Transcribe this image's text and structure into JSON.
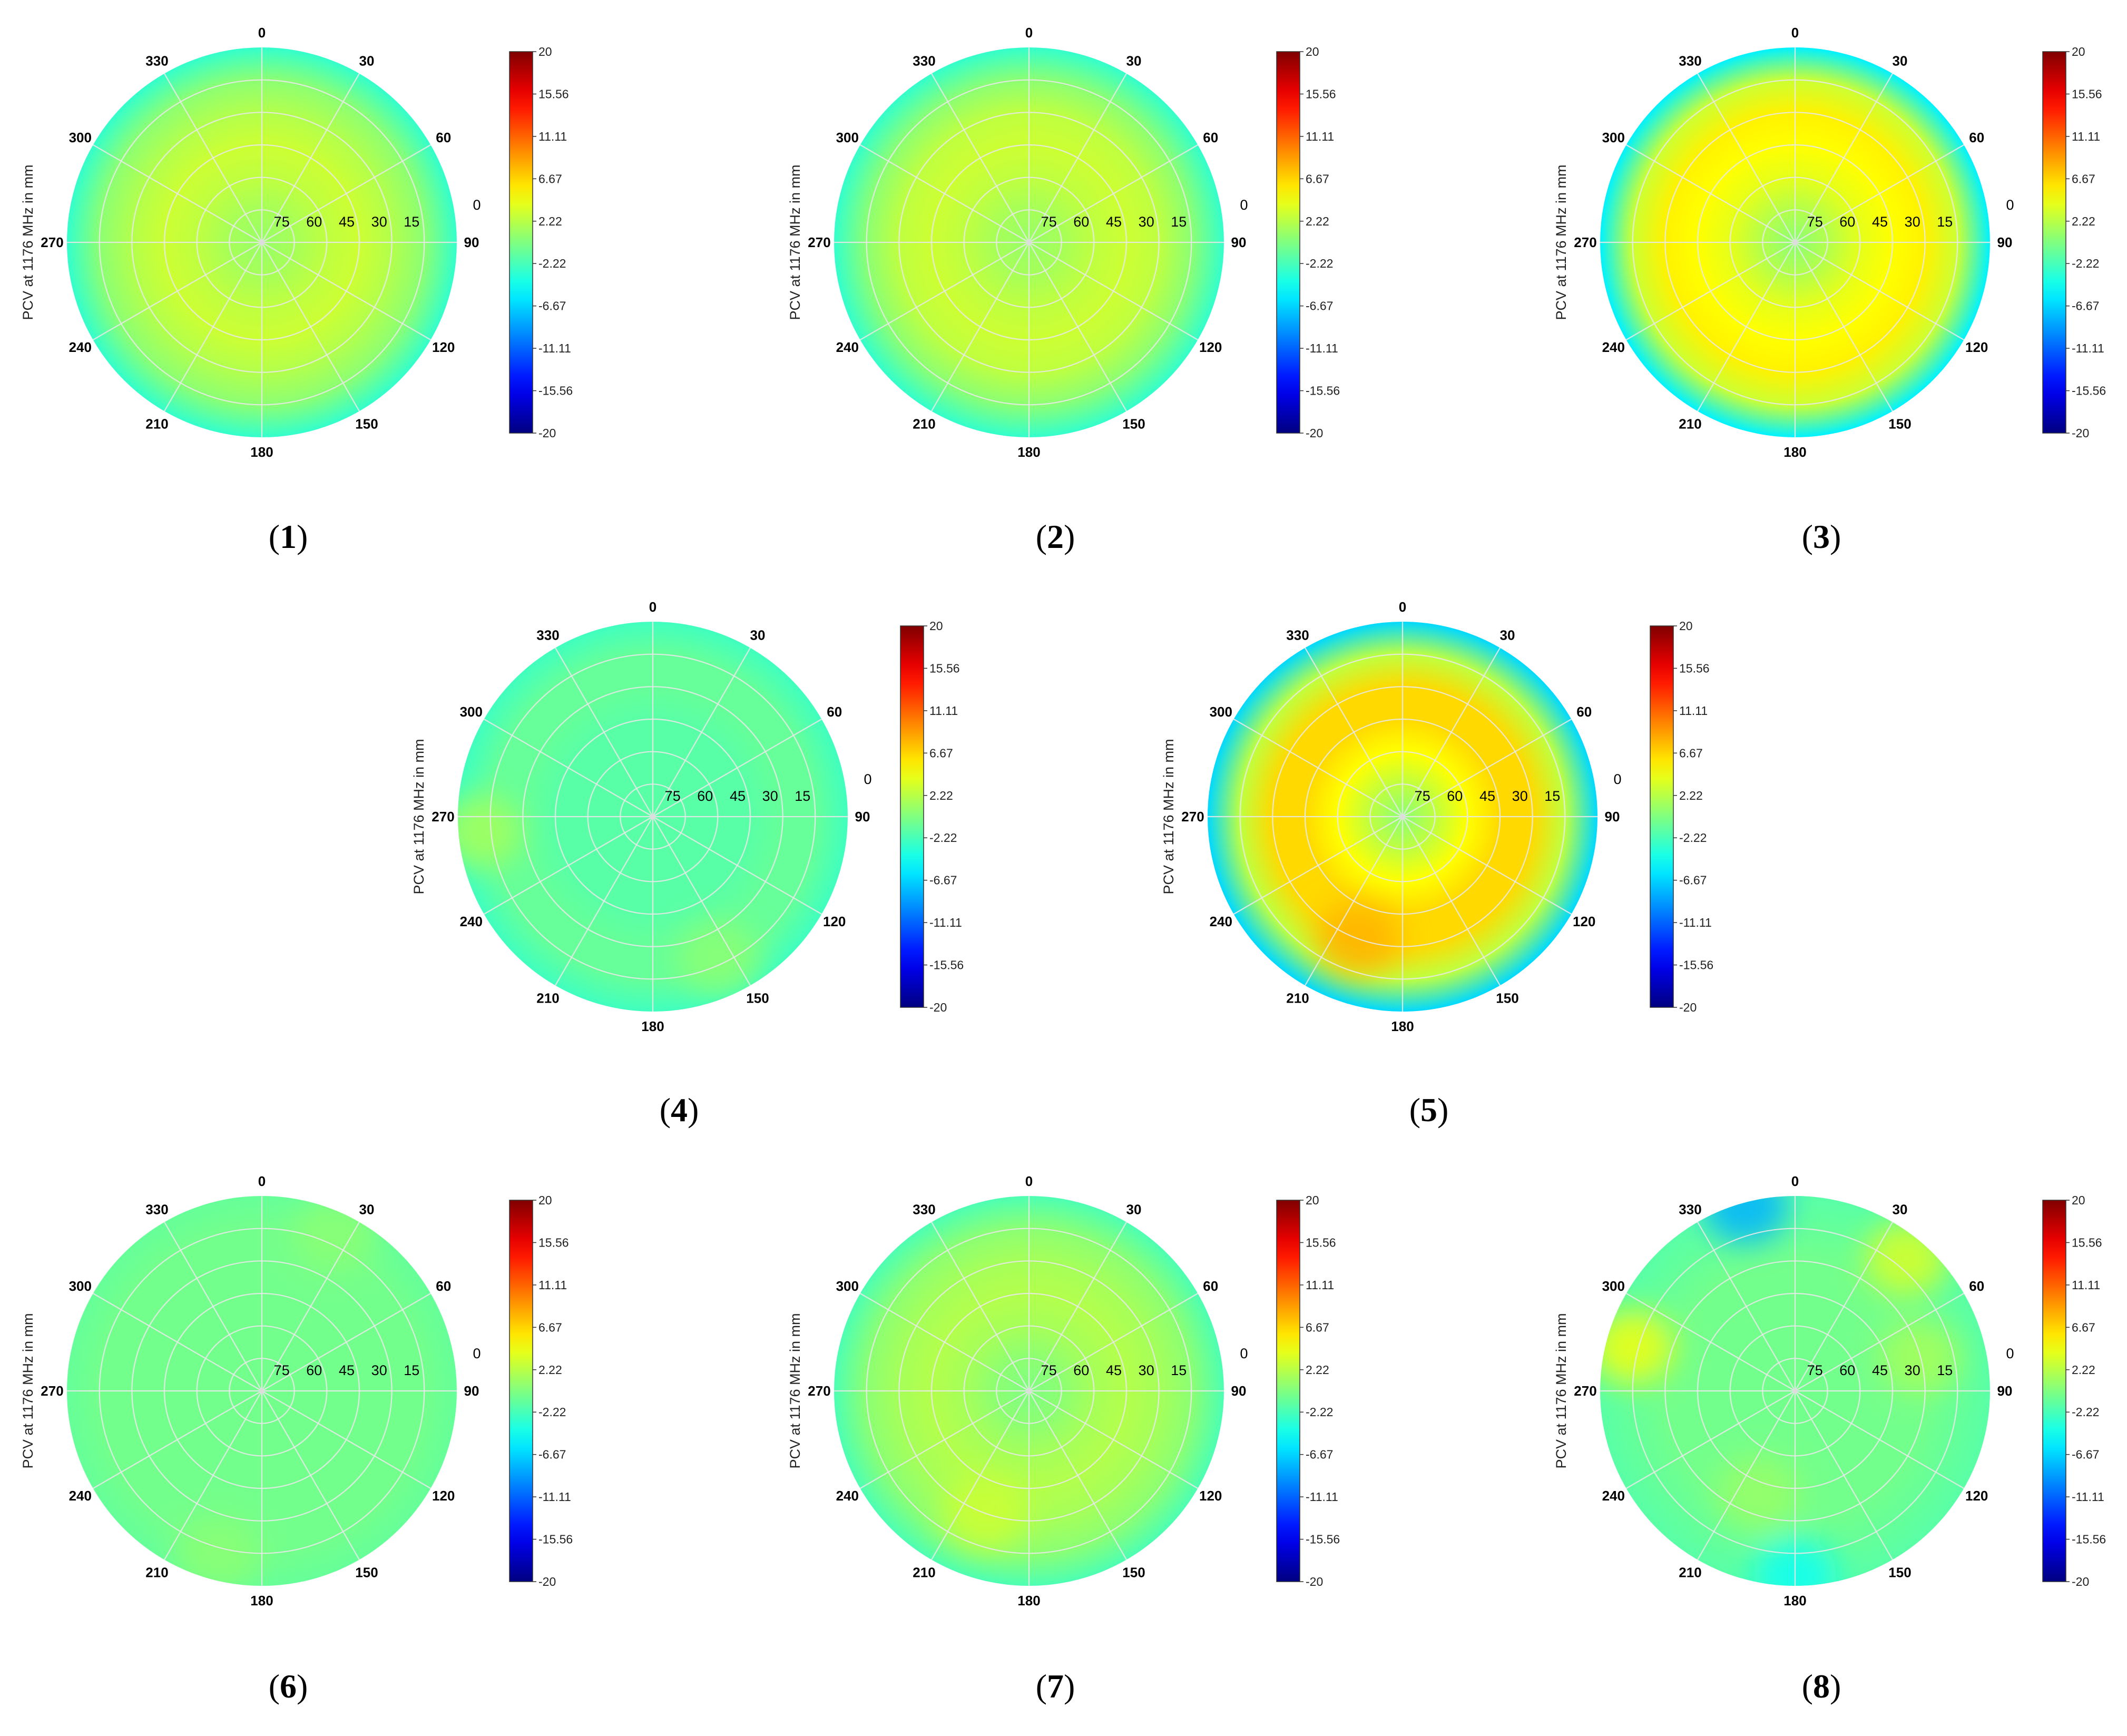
{
  "chart_data": [
    {
      "type": "polar-heatmap",
      "panel_label": "1",
      "ylabel": "PCV at 1176 MHz in mm",
      "angular_ticks": [
        "0",
        "30",
        "60",
        "90",
        "120",
        "150",
        "180",
        "210",
        "240",
        "270",
        "300",
        "330"
      ],
      "radial_ticks": [
        "0",
        "15",
        "30",
        "45",
        "60",
        "75"
      ],
      "colorbar": {
        "ticks": [
          "20",
          "15.56",
          "11.11",
          "6.67",
          "2.22",
          "-2.22",
          "-6.67",
          "-11.11",
          "-15.56",
          "-20"
        ],
        "range": [
          -20,
          20
        ],
        "colormap": "jet"
      },
      "pcv_vs_elevation": {
        "elevation_deg": [
          0,
          15,
          30,
          45,
          60,
          75,
          90
        ],
        "pcv_mm": [
          -3.0,
          0.5,
          2.0,
          3.0,
          2.5,
          1.5,
          1.0
        ]
      },
      "anomalies": []
    },
    {
      "type": "polar-heatmap",
      "panel_label": "2",
      "ylabel": "PCV at 1176 MHz in mm",
      "angular_ticks": [
        "0",
        "30",
        "60",
        "90",
        "120",
        "150",
        "180",
        "210",
        "240",
        "270",
        "300",
        "330"
      ],
      "radial_ticks": [
        "0",
        "15",
        "30",
        "45",
        "60",
        "75"
      ],
      "colorbar": {
        "ticks": [
          "20",
          "15.56",
          "11.11",
          "6.67",
          "2.22",
          "-2.22",
          "-6.67",
          "-11.11",
          "-15.56",
          "-20"
        ],
        "range": [
          -20,
          20
        ],
        "colormap": "jet"
      },
      "pcv_vs_elevation": {
        "elevation_deg": [
          0,
          15,
          30,
          45,
          60,
          75,
          90
        ],
        "pcv_mm": [
          -3.0,
          0.5,
          2.5,
          3.0,
          2.5,
          1.5,
          1.0
        ]
      },
      "anomalies": []
    },
    {
      "type": "polar-heatmap",
      "panel_label": "3",
      "ylabel": "PCV at 1176 MHz in mm",
      "angular_ticks": [
        "0",
        "30",
        "60",
        "90",
        "120",
        "150",
        "180",
        "210",
        "240",
        "270",
        "300",
        "330"
      ],
      "radial_ticks": [
        "0",
        "15",
        "30",
        "45",
        "60",
        "75"
      ],
      "colorbar": {
        "ticks": [
          "20",
          "15.56",
          "11.11",
          "6.67",
          "2.22",
          "-2.22",
          "-6.67",
          "-11.11",
          "-15.56",
          "-20"
        ],
        "range": [
          -20,
          20
        ],
        "colormap": "jet"
      },
      "pcv_vs_elevation": {
        "elevation_deg": [
          0,
          15,
          30,
          45,
          60,
          75,
          90
        ],
        "pcv_mm": [
          -5.5,
          3.0,
          5.5,
          5.0,
          4.0,
          2.0,
          0.5
        ]
      },
      "anomalies": []
    },
    {
      "type": "polar-heatmap",
      "panel_label": "4",
      "ylabel": "PCV at 1176 MHz in mm",
      "angular_ticks": [
        "0",
        "30",
        "60",
        "90",
        "120",
        "150",
        "180",
        "210",
        "240",
        "270",
        "300",
        "330"
      ],
      "radial_ticks": [
        "0",
        "15",
        "30",
        "45",
        "60",
        "75"
      ],
      "colorbar": {
        "ticks": [
          "20",
          "15.56",
          "11.11",
          "6.67",
          "2.22",
          "-2.22",
          "-6.67",
          "-11.11",
          "-15.56",
          "-20"
        ],
        "range": [
          -20,
          20
        ],
        "colormap": "jet"
      },
      "pcv_vs_elevation": {
        "elevation_deg": [
          0,
          15,
          30,
          45,
          60,
          75,
          90
        ],
        "pcv_mm": [
          -2.5,
          -1.0,
          -1.0,
          -1.5,
          -1.5,
          -1.5,
          -1.5
        ]
      },
      "anomalies": [
        {
          "azimuth_deg": 265,
          "elevation_deg": 10,
          "pcv_mm": 1.5
        },
        {
          "azimuth_deg": 155,
          "elevation_deg": 18,
          "pcv_mm": 0.5
        }
      ]
    },
    {
      "type": "polar-heatmap",
      "panel_label": "5",
      "ylabel": "PCV at 1176 MHz in mm",
      "angular_ticks": [
        "0",
        "30",
        "60",
        "90",
        "120",
        "150",
        "180",
        "210",
        "240",
        "270",
        "300",
        "330"
      ],
      "radial_ticks": [
        "0",
        "15",
        "30",
        "45",
        "60",
        "75"
      ],
      "colorbar": {
        "ticks": [
          "20",
          "15.56",
          "11.11",
          "6.67",
          "2.22",
          "-2.22",
          "-6.67",
          "-11.11",
          "-15.56",
          "-20"
        ],
        "range": [
          -20,
          20
        ],
        "colormap": "jet"
      },
      "pcv_vs_elevation": {
        "elevation_deg": [
          0,
          15,
          30,
          45,
          60,
          75,
          90
        ],
        "pcv_mm": [
          -6.5,
          2.5,
          6.5,
          6.5,
          5.0,
          2.5,
          0.5
        ]
      },
      "anomalies": [
        {
          "azimuth_deg": 200,
          "elevation_deg": 30,
          "pcv_mm": 8.0
        }
      ]
    },
    {
      "type": "polar-heatmap",
      "panel_label": "6",
      "ylabel": "PCV at 1176 MHz in mm",
      "angular_ticks": [
        "0",
        "30",
        "60",
        "90",
        "120",
        "150",
        "180",
        "210",
        "240",
        "270",
        "300",
        "330"
      ],
      "radial_ticks": [
        "0",
        "15",
        "30",
        "45",
        "60",
        "75"
      ],
      "colorbar": {
        "ticks": [
          "20",
          "15.56",
          "11.11",
          "6.67",
          "2.22",
          "-2.22",
          "-6.67",
          "-11.11",
          "-15.56",
          "-20"
        ],
        "range": [
          -20,
          20
        ],
        "colormap": "jet"
      },
      "pcv_vs_elevation": {
        "elevation_deg": [
          0,
          15,
          30,
          45,
          60,
          75,
          90
        ],
        "pcv_mm": [
          -1.0,
          -0.5,
          -0.5,
          -0.5,
          -0.5,
          -0.5,
          -0.5
        ]
      },
      "anomalies": [
        {
          "azimuth_deg": 25,
          "elevation_deg": 10,
          "pcv_mm": 0.5
        },
        {
          "azimuth_deg": 195,
          "elevation_deg": 12,
          "pcv_mm": 0.5
        }
      ]
    },
    {
      "type": "polar-heatmap",
      "panel_label": "7",
      "ylabel": "PCV at 1176 MHz in mm",
      "angular_ticks": [
        "0",
        "30",
        "60",
        "90",
        "120",
        "150",
        "180",
        "210",
        "240",
        "270",
        "300",
        "330"
      ],
      "radial_ticks": [
        "0",
        "15",
        "30",
        "45",
        "60",
        "75"
      ],
      "colorbar": {
        "ticks": [
          "20",
          "15.56",
          "11.11",
          "6.67",
          "2.22",
          "-2.22",
          "-6.67",
          "-11.11",
          "-15.56",
          "-20"
        ],
        "range": [
          -20,
          20
        ],
        "colormap": "jet"
      },
      "pcv_vs_elevation": {
        "elevation_deg": [
          0,
          15,
          30,
          45,
          60,
          75,
          90
        ],
        "pcv_mm": [
          -2.0,
          0.5,
          1.5,
          2.0,
          1.5,
          0.5,
          0.0
        ]
      },
      "anomalies": [
        {
          "azimuth_deg": 200,
          "elevation_deg": 30,
          "pcv_mm": 3.0
        }
      ]
    },
    {
      "type": "polar-heatmap",
      "panel_label": "8",
      "ylabel": "PCV at 1176 MHz in mm",
      "angular_ticks": [
        "0",
        "30",
        "60",
        "90",
        "120",
        "150",
        "180",
        "210",
        "240",
        "270",
        "300",
        "330"
      ],
      "radial_ticks": [
        "0",
        "15",
        "30",
        "45",
        "60",
        "75"
      ],
      "colorbar": {
        "ticks": [
          "20",
          "15.56",
          "11.11",
          "6.67",
          "2.22",
          "-2.22",
          "-6.67",
          "-11.11",
          "-15.56",
          "-20"
        ],
        "range": [
          -20,
          20
        ],
        "colormap": "jet"
      },
      "pcv_vs_elevation": {
        "elevation_deg": [
          0,
          15,
          30,
          45,
          60,
          75,
          90
        ],
        "pcv_mm": [
          -1.5,
          -1.0,
          -0.5,
          -0.5,
          -0.5,
          -0.5,
          -0.5
        ]
      },
      "anomalies": [
        {
          "azimuth_deg": 345,
          "elevation_deg": 2,
          "pcv_mm": -8.0
        },
        {
          "azimuth_deg": 285,
          "elevation_deg": 12,
          "pcv_mm": 4.5
        },
        {
          "azimuth_deg": 40,
          "elevation_deg": 10,
          "pcv_mm": 3.5
        },
        {
          "azimuth_deg": 75,
          "elevation_deg": 30,
          "pcv_mm": 1.5
        },
        {
          "azimuth_deg": 180,
          "elevation_deg": 5,
          "pcv_mm": -4.5
        },
        {
          "azimuth_deg": 200,
          "elevation_deg": 40,
          "pcv_mm": 1.0
        }
      ]
    }
  ]
}
